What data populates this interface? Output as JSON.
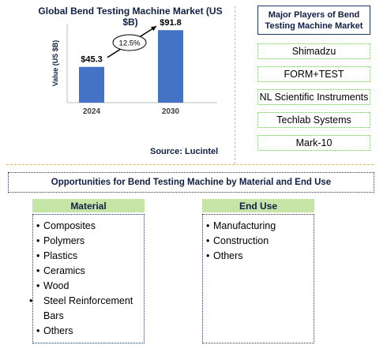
{
  "chart_data": {
    "type": "bar",
    "title": "Global Bend Testing Machine Market (US $B)",
    "ylabel": "Value (US $B)",
    "xlabel": "",
    "categories": [
      "2024",
      "2030"
    ],
    "values": [
      45.3,
      91.8
    ],
    "value_labels": [
      "$45.3",
      "$91.8"
    ],
    "ylim": [
      0,
      100
    ],
    "bar_color": "#4472c4",
    "annotation": "12.5%",
    "grid": false
  },
  "source": "Source: Lucintel",
  "players": {
    "title": "Major Players of Bend Testing Machine Market",
    "items": [
      "Shimadzu",
      "FORM+TEST",
      "NL Scientific Instruments",
      "Techlab Systems",
      "Mark-10"
    ]
  },
  "opportunities": {
    "title": "Opportunities for Bend Testing Machine by Material and End Use",
    "material": {
      "header": "Material",
      "items": [
        "Composites",
        "Polymers",
        "Plastics",
        "Ceramics",
        "Wood",
        "Steel Reinforcement Bars",
        "Others"
      ]
    },
    "end_use": {
      "header": "End Use",
      "items": [
        "Manufacturing",
        "Construction",
        "Others"
      ]
    }
  },
  "colors": {
    "title_text": "#0f1f45",
    "bar": "#4472c4",
    "header_fill": "#c5e5a6",
    "divider": "#e8b84a"
  }
}
